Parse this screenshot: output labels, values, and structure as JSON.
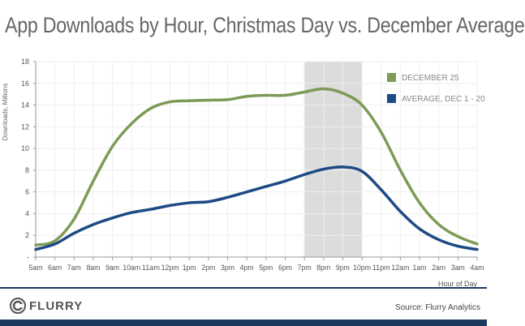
{
  "chart_data": {
    "type": "line",
    "title": "App Downloads by Hour, Christmas Day vs. December Average",
    "xlabel": "Hour of Day",
    "ylabel": "Downloads, Millions",
    "ylim": [
      0,
      18
    ],
    "yticks": [
      "-",
      "2",
      "4",
      "6",
      "8",
      "10",
      "12",
      "14",
      "16",
      "18"
    ],
    "categories": [
      "5am",
      "6am",
      "7am",
      "8am",
      "9am",
      "10am",
      "11am",
      "12pm",
      "1pm",
      "2pm",
      "3pm",
      "4pm",
      "5pm",
      "6pm",
      "7pm",
      "8pm",
      "9pm",
      "10pm",
      "11pm",
      "12am",
      "1am",
      "2am",
      "3am",
      "4am"
    ],
    "highlight": {
      "from": "7pm",
      "to": "10pm",
      "color": "#dcdcdc"
    },
    "grid": true,
    "legend_position": "top-right",
    "series": [
      {
        "name": "DECEMBER 25",
        "color": "#7d9b57",
        "values": [
          1.1,
          1.5,
          3.5,
          7,
          10.2,
          12.3,
          13.7,
          14.3,
          14.4,
          14.45,
          14.5,
          14.8,
          14.9,
          14.9,
          15.2,
          15.5,
          15.1,
          14,
          11.5,
          8,
          5,
          3,
          1.9,
          1.2
        ]
      },
      {
        "name": "AVERAGE, DEC 1 - 20",
        "color": "#1d4a85",
        "values": [
          0.7,
          1.2,
          2.2,
          3,
          3.6,
          4.1,
          4.4,
          4.75,
          5,
          5.1,
          5.5,
          6,
          6.5,
          7,
          7.6,
          8.1,
          8.3,
          7.9,
          6.2,
          4.2,
          2.6,
          1.6,
          1.0,
          0.7
        ]
      }
    ]
  },
  "footer": {
    "logo": "FLURRY",
    "source": "Source: Flurry Analytics"
  }
}
